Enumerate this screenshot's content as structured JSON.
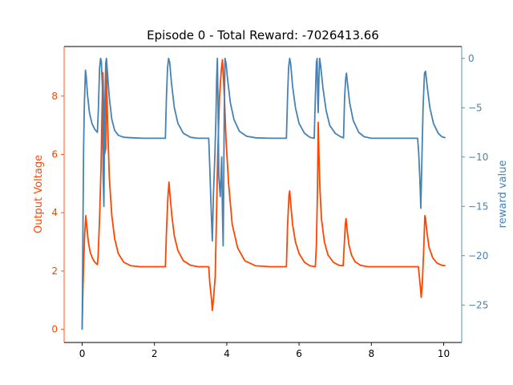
{
  "chart_data": {
    "type": "line",
    "title": "Episode 0 - Total Reward: -7026413.66",
    "xlabel": "",
    "xlim": [
      -0.5,
      10.5
    ],
    "xticks": [
      0,
      2,
      4,
      6,
      8,
      10
    ],
    "grid": false,
    "left_axis": {
      "label": "Output Voltage",
      "color": "#ff4500",
      "ylim": [
        -0.45,
        9.7
      ],
      "ticks": [
        0,
        2,
        4,
        6,
        8
      ]
    },
    "right_axis": {
      "label": "reward value",
      "color": "#4682b4",
      "ylim": [
        -28.8,
        1.2
      ],
      "ticks": [
        0,
        -5,
        -10,
        -15,
        -20,
        -25
      ]
    },
    "series": [
      {
        "axis": "left",
        "color": "#ff4500",
        "points": [
          [
            0,
            0
          ],
          [
            0.02,
            1.3
          ],
          [
            0.05,
            2.6
          ],
          [
            0.07,
            3.3
          ],
          [
            0.1,
            3.9
          ],
          [
            0.13,
            3.5
          ],
          [
            0.17,
            3.0
          ],
          [
            0.22,
            2.65
          ],
          [
            0.28,
            2.45
          ],
          [
            0.35,
            2.3
          ],
          [
            0.42,
            2.22
          ],
          [
            0.44,
            2.5
          ],
          [
            0.48,
            3.8
          ],
          [
            0.52,
            5.5
          ],
          [
            0.55,
            7.5
          ],
          [
            0.57,
            8.8
          ],
          [
            0.58,
            8.5
          ],
          [
            0.6,
            7.0
          ],
          [
            0.62,
            6.0
          ],
          [
            0.65,
            6.2
          ],
          [
            0.67,
            8.9
          ],
          [
            0.7,
            7.2
          ],
          [
            0.75,
            5.2
          ],
          [
            0.82,
            3.9
          ],
          [
            0.9,
            3.1
          ],
          [
            1.0,
            2.6
          ],
          [
            1.15,
            2.3
          ],
          [
            1.35,
            2.18
          ],
          [
            1.6,
            2.15
          ],
          [
            2.3,
            2.15
          ],
          [
            2.33,
            3.3
          ],
          [
            2.37,
            4.5
          ],
          [
            2.4,
            5.05
          ],
          [
            2.43,
            4.6
          ],
          [
            2.48,
            3.9
          ],
          [
            2.55,
            3.2
          ],
          [
            2.65,
            2.7
          ],
          [
            2.8,
            2.35
          ],
          [
            3.0,
            2.2
          ],
          [
            3.2,
            2.15
          ],
          [
            3.5,
            2.15
          ],
          [
            3.53,
            1.6
          ],
          [
            3.58,
            1.0
          ],
          [
            3.6,
            0.65
          ],
          [
            3.63,
            1.0
          ],
          [
            3.66,
            1.5
          ],
          [
            3.68,
            1.8
          ],
          [
            3.71,
            3.5
          ],
          [
            3.75,
            6.0
          ],
          [
            3.8,
            8.0
          ],
          [
            3.85,
            8.9
          ],
          [
            3.88,
            9.25
          ],
          [
            3.9,
            8.8
          ],
          [
            3.94,
            7.8
          ],
          [
            3.98,
            6.5
          ],
          [
            4.05,
            5.0
          ],
          [
            4.15,
            3.6
          ],
          [
            4.3,
            2.8
          ],
          [
            4.5,
            2.35
          ],
          [
            4.8,
            2.18
          ],
          [
            5.2,
            2.15
          ],
          [
            5.65,
            2.15
          ],
          [
            5.68,
            3.5
          ],
          [
            5.72,
            4.6
          ],
          [
            5.74,
            4.75
          ],
          [
            5.77,
            4.3
          ],
          [
            5.82,
            3.6
          ],
          [
            5.9,
            3.0
          ],
          [
            6.0,
            2.6
          ],
          [
            6.15,
            2.3
          ],
          [
            6.3,
            2.18
          ],
          [
            6.45,
            2.15
          ],
          [
            6.48,
            2.9
          ],
          [
            6.51,
            4.8
          ],
          [
            6.53,
            7.1
          ],
          [
            6.55,
            6.0
          ],
          [
            6.58,
            4.8
          ],
          [
            6.62,
            3.8
          ],
          [
            6.7,
            3.0
          ],
          [
            6.8,
            2.55
          ],
          [
            6.95,
            2.3
          ],
          [
            7.1,
            2.2
          ],
          [
            7.22,
            2.18
          ],
          [
            7.25,
            2.9
          ],
          [
            7.28,
            3.6
          ],
          [
            7.3,
            3.8
          ],
          [
            7.33,
            3.4
          ],
          [
            7.38,
            2.9
          ],
          [
            7.45,
            2.55
          ],
          [
            7.55,
            2.32
          ],
          [
            7.7,
            2.2
          ],
          [
            7.9,
            2.15
          ],
          [
            9.3,
            2.15
          ],
          [
            9.33,
            1.8
          ],
          [
            9.36,
            1.4
          ],
          [
            9.38,
            1.1
          ],
          [
            9.41,
            1.6
          ],
          [
            9.45,
            2.8
          ],
          [
            9.48,
            3.9
          ],
          [
            9.5,
            3.8
          ],
          [
            9.54,
            3.3
          ],
          [
            9.6,
            2.8
          ],
          [
            9.7,
            2.45
          ],
          [
            9.82,
            2.27
          ],
          [
            9.95,
            2.2
          ],
          [
            10.05,
            2.18
          ]
        ]
      },
      {
        "axis": "right",
        "color": "#4682b4",
        "points": [
          [
            0,
            -27.5
          ],
          [
            0.02,
            -18
          ],
          [
            0.04,
            -9
          ],
          [
            0.06,
            -4.5
          ],
          [
            0.09,
            -1.2
          ],
          [
            0.11,
            -1.8
          ],
          [
            0.15,
            -3.8
          ],
          [
            0.2,
            -5.5
          ],
          [
            0.27,
            -6.6
          ],
          [
            0.35,
            -7.2
          ],
          [
            0.42,
            -7.5
          ],
          [
            0.45,
            -5
          ],
          [
            0.48,
            -1
          ],
          [
            0.51,
            0
          ],
          [
            0.53,
            -0.3
          ],
          [
            0.56,
            -3
          ],
          [
            0.58,
            -12
          ],
          [
            0.6,
            -15
          ],
          [
            0.62,
            -6
          ],
          [
            0.65,
            -0.5
          ],
          [
            0.67,
            0
          ],
          [
            0.7,
            -1.5
          ],
          [
            0.75,
            -4
          ],
          [
            0.82,
            -6.2
          ],
          [
            0.9,
            -7.3
          ],
          [
            1.0,
            -7.8
          ],
          [
            1.15,
            -8.0
          ],
          [
            1.4,
            -8.05
          ],
          [
            1.7,
            -8.1
          ],
          [
            2.3,
            -8.1
          ],
          [
            2.33,
            -4
          ],
          [
            2.36,
            -1
          ],
          [
            2.39,
            0
          ],
          [
            2.42,
            -0.4
          ],
          [
            2.47,
            -2.5
          ],
          [
            2.55,
            -5
          ],
          [
            2.65,
            -6.6
          ],
          [
            2.8,
            -7.6
          ],
          [
            3.0,
            -8.0
          ],
          [
            3.2,
            -8.1
          ],
          [
            3.5,
            -8.1
          ],
          [
            3.53,
            -11
          ],
          [
            3.57,
            -15.5
          ],
          [
            3.6,
            -18.5
          ],
          [
            3.63,
            -14
          ],
          [
            3.67,
            -10
          ],
          [
            3.7,
            -6
          ],
          [
            3.72,
            -2
          ],
          [
            3.74,
            0
          ],
          [
            3.76,
            -5
          ],
          [
            3.78,
            -12
          ],
          [
            3.82,
            -14
          ],
          [
            3.86,
            -10
          ],
          [
            3.88,
            -15.5
          ],
          [
            3.9,
            -19
          ],
          [
            3.91,
            -15
          ],
          [
            3.93,
            -5
          ],
          [
            3.95,
            0
          ],
          [
            3.98,
            -0.5
          ],
          [
            4.02,
            -2
          ],
          [
            4.1,
            -4.5
          ],
          [
            4.2,
            -6.2
          ],
          [
            4.35,
            -7.4
          ],
          [
            4.55,
            -7.9
          ],
          [
            4.8,
            -8.05
          ],
          [
            5.2,
            -8.1
          ],
          [
            5.65,
            -8.1
          ],
          [
            5.68,
            -4
          ],
          [
            5.71,
            -1
          ],
          [
            5.74,
            0
          ],
          [
            5.77,
            -0.6
          ],
          [
            5.82,
            -2.8
          ],
          [
            5.9,
            -5
          ],
          [
            6.0,
            -6.6
          ],
          [
            6.15,
            -7.6
          ],
          [
            6.3,
            -8.0
          ],
          [
            6.42,
            -8.1
          ],
          [
            6.45,
            -4
          ],
          [
            6.48,
            -0.5
          ],
          [
            6.5,
            0
          ],
          [
            6.52,
            -4.5
          ],
          [
            6.53,
            -5.5
          ],
          [
            6.55,
            -2
          ],
          [
            6.57,
            0
          ],
          [
            6.6,
            -0.8
          ],
          [
            6.66,
            -3
          ],
          [
            6.75,
            -5.3
          ],
          [
            6.85,
            -6.8
          ],
          [
            7.0,
            -7.6
          ],
          [
            7.15,
            -7.95
          ],
          [
            7.23,
            -8.05
          ],
          [
            7.26,
            -4
          ],
          [
            7.29,
            -2
          ],
          [
            7.31,
            -1.5
          ],
          [
            7.34,
            -2.5
          ],
          [
            7.4,
            -4.5
          ],
          [
            7.5,
            -6.3
          ],
          [
            7.65,
            -7.5
          ],
          [
            7.8,
            -7.95
          ],
          [
            8.0,
            -8.1
          ],
          [
            9.28,
            -8.1
          ],
          [
            9.31,
            -9.5
          ],
          [
            9.34,
            -12
          ],
          [
            9.37,
            -15.2
          ],
          [
            9.4,
            -10
          ],
          [
            9.43,
            -5
          ],
          [
            9.47,
            -1.5
          ],
          [
            9.5,
            -1.3
          ],
          [
            9.55,
            -3
          ],
          [
            9.62,
            -5
          ],
          [
            9.72,
            -6.6
          ],
          [
            9.85,
            -7.6
          ],
          [
            9.95,
            -7.95
          ],
          [
            10.05,
            -8.05
          ]
        ]
      }
    ]
  }
}
